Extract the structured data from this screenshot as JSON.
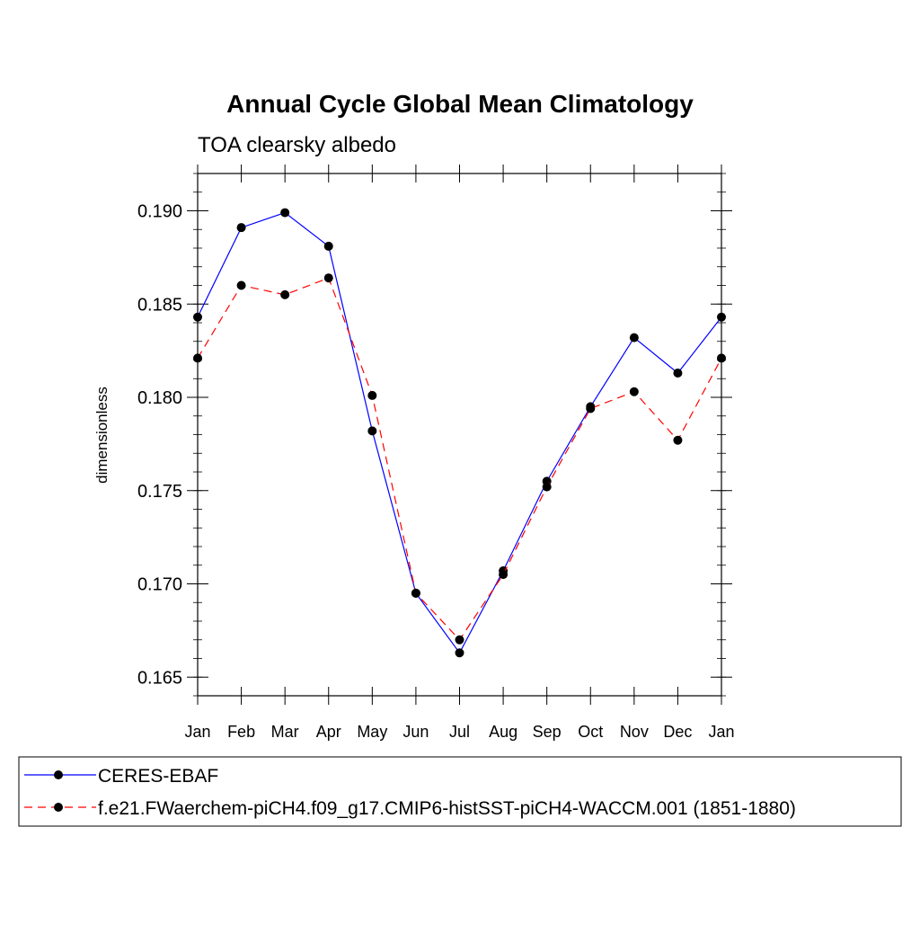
{
  "chart_data": {
    "type": "line",
    "title": "Annual Cycle Global Mean Climatology",
    "subtitle": "TOA clearsky albedo",
    "ylabel": "dimensionless",
    "xlabel": "",
    "categories": [
      "Jan",
      "Feb",
      "Mar",
      "Apr",
      "May",
      "Jun",
      "Jul",
      "Aug",
      "Sep",
      "Oct",
      "Nov",
      "Dec",
      "Jan"
    ],
    "ylim": [
      0.164,
      0.192
    ],
    "yticks": [
      "0.165",
      "0.170",
      "0.175",
      "0.180",
      "0.185",
      "0.190"
    ],
    "ytick_values": [
      0.165,
      0.17,
      0.175,
      0.18,
      0.185,
      0.19
    ],
    "grid": false,
    "legend_position": "bottom",
    "series": [
      {
        "name": "CERES-EBAF",
        "color": "#0000ff",
        "dash": "solid",
        "marker": "filled-circle",
        "values": [
          0.1843,
          0.1891,
          0.1899,
          0.1881,
          0.1782,
          0.1695,
          0.1663,
          0.1707,
          0.1755,
          0.1795,
          0.1832,
          0.1813,
          0.1843
        ]
      },
      {
        "name": "f.e21.FWaerchem-piCH4.f09_g17.CMIP6-histSST-piCH4-WACCM.001 (1851-1880)",
        "color": "#ff0000",
        "dash": "dashed",
        "marker": "filled-circle",
        "values": [
          0.1821,
          0.186,
          0.1855,
          0.1864,
          0.1801,
          0.1695,
          0.167,
          0.1705,
          0.1752,
          0.1794,
          0.1803,
          0.1777,
          0.1821
        ]
      }
    ]
  }
}
